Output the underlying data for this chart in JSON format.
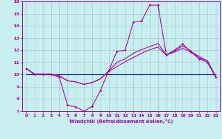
{
  "xlabel": "Windchill (Refroidissement éolien,°C)",
  "xlim": [
    -0.5,
    23.5
  ],
  "ylim": [
    7,
    16
  ],
  "xticks": [
    0,
    1,
    2,
    3,
    4,
    5,
    6,
    7,
    8,
    9,
    10,
    11,
    12,
    13,
    14,
    15,
    16,
    17,
    18,
    19,
    20,
    21,
    22,
    23
  ],
  "yticks": [
    7,
    8,
    9,
    10,
    11,
    12,
    13,
    14,
    15,
    16
  ],
  "bg_color": "#c8eef0",
  "grid_color": "#a0d0d8",
  "line_color": "#aa00aa",
  "flat_line_color": "#000080",
  "line1_x": [
    0,
    1,
    2,
    3,
    4,
    5,
    6,
    7,
    8,
    9,
    10,
    11,
    12,
    13,
    14,
    15,
    16,
    17,
    18,
    19,
    20,
    21,
    22,
    23
  ],
  "line1_y": [
    10.5,
    10.0,
    10.0,
    10.0,
    9.8,
    7.5,
    7.35,
    7.0,
    7.4,
    8.7,
    10.3,
    11.9,
    12.0,
    14.3,
    14.4,
    15.7,
    15.7,
    11.6,
    12.0,
    12.5,
    11.85,
    11.3,
    11.0,
    9.8
  ],
  "line2_x": [
    0,
    1,
    2,
    3,
    4,
    5,
    6,
    7,
    8,
    9,
    10,
    11,
    12,
    13,
    14,
    15,
    16,
    17,
    18,
    19,
    20,
    21,
    22,
    23
  ],
  "line2_y": [
    10.5,
    10.05,
    10.05,
    10.05,
    9.9,
    9.5,
    9.4,
    9.2,
    9.35,
    9.65,
    10.25,
    10.65,
    11.05,
    11.4,
    11.75,
    12.05,
    12.25,
    11.6,
    11.85,
    12.15,
    11.85,
    11.5,
    11.1,
    9.85
  ],
  "line3_x": [
    0,
    23
  ],
  "line3_y": [
    10.0,
    10.0
  ],
  "line4_x": [
    0,
    1,
    2,
    3,
    4,
    5,
    6,
    7,
    8,
    9,
    10,
    11,
    12,
    13,
    14,
    15,
    16,
    17,
    18,
    19,
    20,
    21,
    22,
    23
  ],
  "line4_y": [
    10.5,
    10.05,
    10.05,
    10.05,
    9.9,
    9.5,
    9.4,
    9.2,
    9.35,
    9.65,
    10.3,
    11.0,
    11.3,
    11.75,
    12.05,
    12.3,
    12.55,
    11.6,
    11.95,
    12.35,
    11.95,
    11.35,
    11.15,
    9.85
  ]
}
